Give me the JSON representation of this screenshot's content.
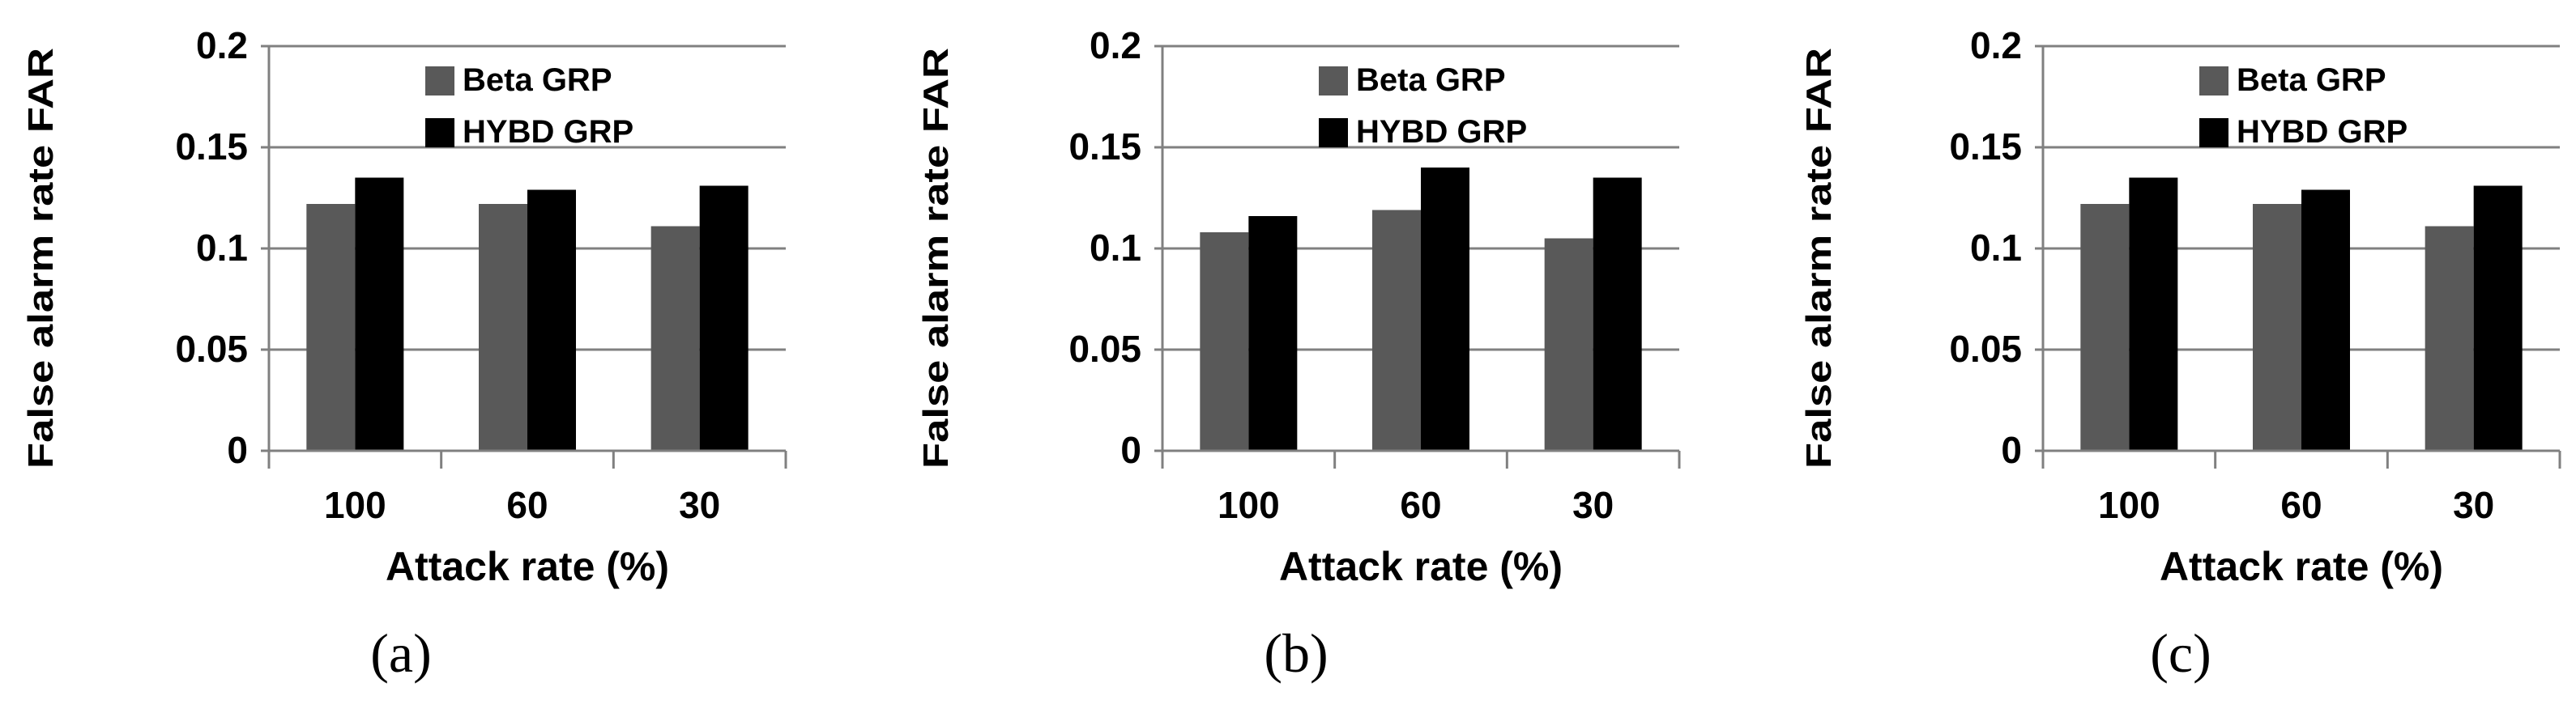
{
  "figure": {
    "panel_labels": [
      "(a)",
      "(b)",
      "(c)"
    ]
  },
  "colors": {
    "beta": "#595959",
    "hybd": "#000000",
    "gridline": "#808080",
    "axis": "#808080"
  },
  "chart_data": [
    {
      "type": "bar",
      "panel": "(a)",
      "title": "",
      "xlabel": "Attack rate (%)",
      "ylabel": "False alarm rate FAR",
      "categories": [
        "100",
        "60",
        "30"
      ],
      "ylim": [
        0,
        0.2
      ],
      "yticks": [
        "0",
        "0.05",
        "0.1",
        "0.15",
        "0.2"
      ],
      "ytick_values": [
        0,
        0.05,
        0.1,
        0.15,
        0.2
      ],
      "grid": true,
      "legend_position": "top-right",
      "series": [
        {
          "name": "Beta GRP",
          "values": [
            0.122,
            0.122,
            0.111
          ]
        },
        {
          "name": "HYBD GRP",
          "values": [
            0.135,
            0.129,
            0.131
          ]
        }
      ]
    },
    {
      "type": "bar",
      "panel": "(b)",
      "title": "",
      "xlabel": "Attack rate (%)",
      "ylabel": "False alarm rate FAR",
      "categories": [
        "100",
        "60",
        "30"
      ],
      "ylim": [
        0,
        0.2
      ],
      "yticks": [
        "0",
        "0.05",
        "0.1",
        "0.15",
        "0.2"
      ],
      "ytick_values": [
        0,
        0.05,
        0.1,
        0.15,
        0.2
      ],
      "grid": true,
      "legend_position": "top-right",
      "series": [
        {
          "name": "Beta GRP",
          "values": [
            0.108,
            0.119,
            0.105
          ]
        },
        {
          "name": "HYBD GRP",
          "values": [
            0.116,
            0.14,
            0.135
          ]
        }
      ]
    },
    {
      "type": "bar",
      "panel": "(c)",
      "title": "",
      "xlabel": "Attack rate (%)",
      "ylabel": "False alarm rate FAR",
      "categories": [
        "100",
        "60",
        "30"
      ],
      "ylim": [
        0,
        0.2
      ],
      "yticks": [
        "0",
        "0.05",
        "0.1",
        "0.15",
        "0.2"
      ],
      "ytick_values": [
        0,
        0.05,
        0.1,
        0.15,
        0.2
      ],
      "grid": true,
      "legend_position": "top-right",
      "series": [
        {
          "name": "Beta GRP",
          "values": [
            0.122,
            0.122,
            0.111
          ]
        },
        {
          "name": "HYBD GRP",
          "values": [
            0.135,
            0.129,
            0.131
          ]
        }
      ]
    }
  ]
}
